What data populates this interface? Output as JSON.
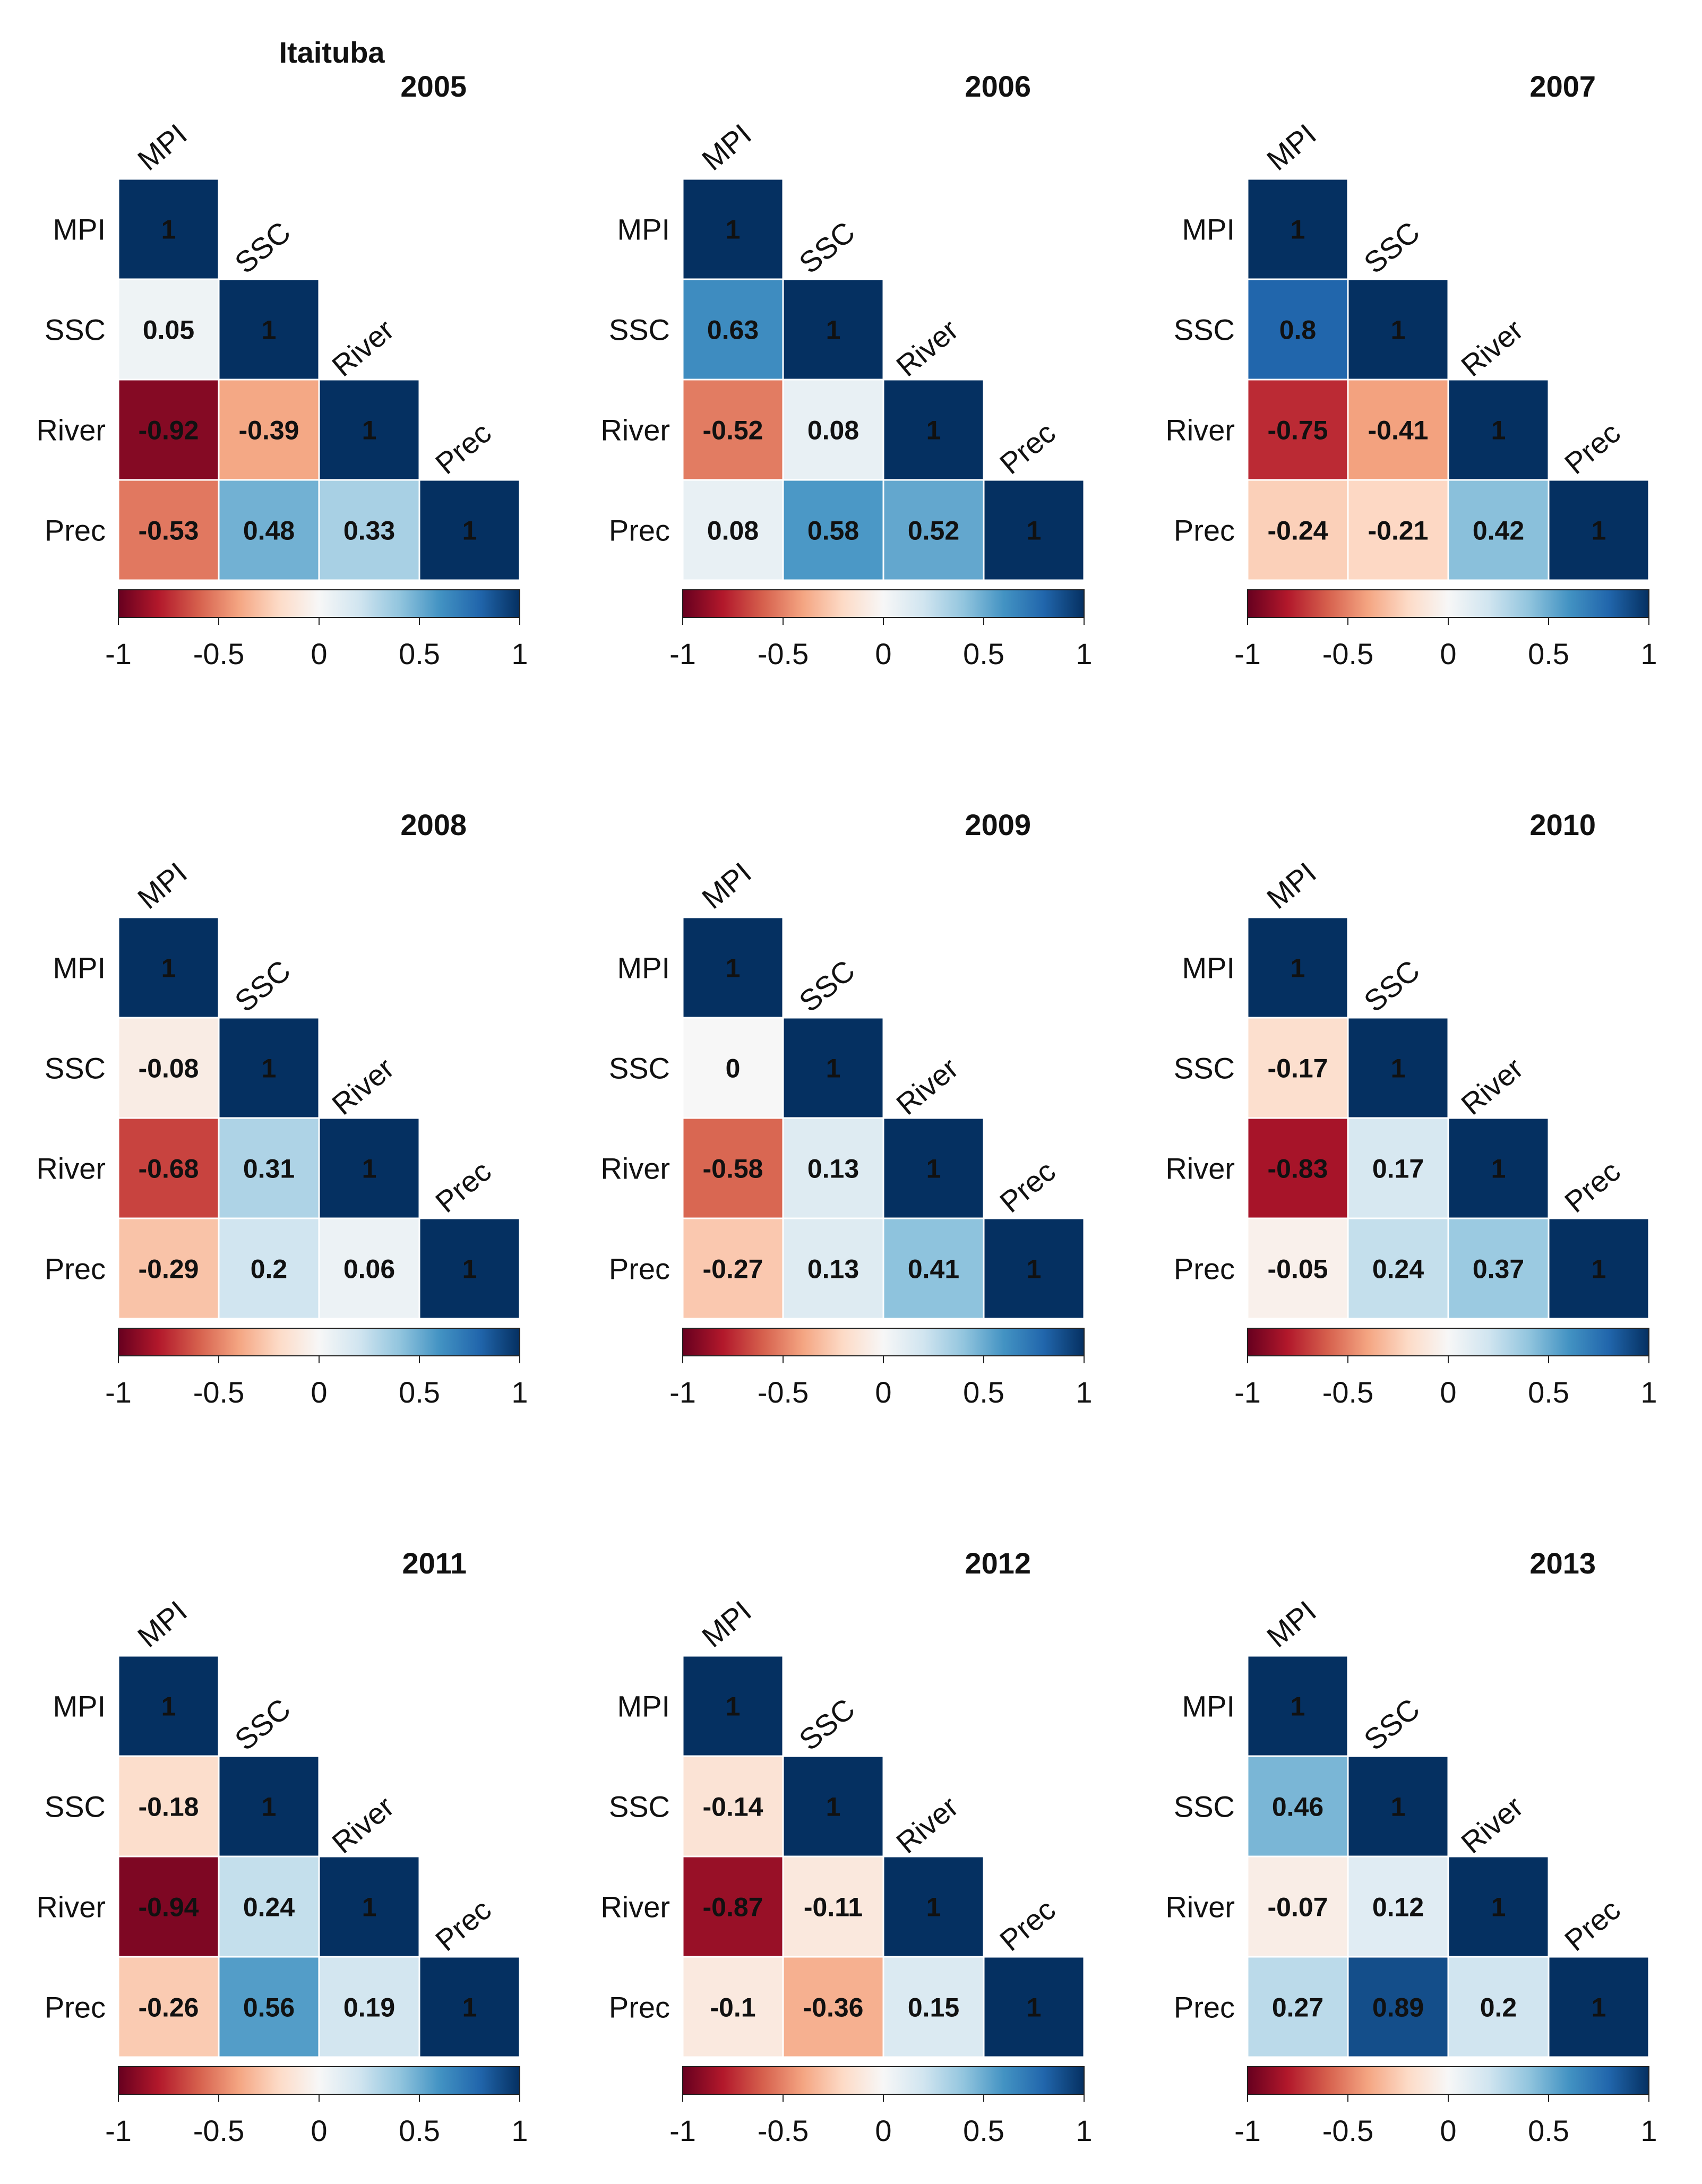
{
  "chart_data": {
    "type": "heatmap",
    "title": "Itaituba",
    "variables": [
      "MPI",
      "SSC",
      "River",
      "Prec"
    ],
    "colorbar": {
      "range": [
        -1,
        1
      ],
      "ticks": [
        -1,
        -0.5,
        0,
        0.5,
        1
      ],
      "tick_labels": [
        "-1",
        "-0.5",
        "0",
        "0.5",
        "1"
      ],
      "colors": [
        "#67001f",
        "#b2182b",
        "#d6604d",
        "#f4a582",
        "#fddbc7",
        "#f7f7f7",
        "#d1e5f0",
        "#92c5de",
        "#4393c3",
        "#2166ac",
        "#053061"
      ]
    },
    "panels": [
      {
        "year": "2005",
        "lower": [
          [
            "1"
          ],
          [
            "0.05",
            "1"
          ],
          [
            "-0.92",
            "-0.39",
            "1"
          ],
          [
            "-0.53",
            "0.48",
            "0.33",
            "1"
          ]
        ]
      },
      {
        "year": "2006",
        "lower": [
          [
            "1"
          ],
          [
            "0.63",
            "1"
          ],
          [
            "-0.52",
            "0.08",
            "1"
          ],
          [
            "0.08",
            "0.58",
            "0.52",
            "1"
          ]
        ]
      },
      {
        "year": "2007",
        "lower": [
          [
            "1"
          ],
          [
            "0.8",
            "1"
          ],
          [
            "-0.75",
            "-0.41",
            "1"
          ],
          [
            "-0.24",
            "-0.21",
            "0.42",
            "1"
          ]
        ]
      },
      {
        "year": "2008",
        "lower": [
          [
            "1"
          ],
          [
            "-0.08",
            "1"
          ],
          [
            "-0.68",
            "0.31",
            "1"
          ],
          [
            "-0.29",
            "0.2",
            "0.06",
            "1"
          ]
        ]
      },
      {
        "year": "2009",
        "lower": [
          [
            "1"
          ],
          [
            "0",
            "1"
          ],
          [
            "-0.58",
            "0.13",
            "1"
          ],
          [
            "-0.27",
            "0.13",
            "0.41",
            "1"
          ]
        ]
      },
      {
        "year": "2010",
        "lower": [
          [
            "1"
          ],
          [
            "-0.17",
            "1"
          ],
          [
            "-0.83",
            "0.17",
            "1"
          ],
          [
            "-0.05",
            "0.24",
            "0.37",
            "1"
          ]
        ]
      },
      {
        "year": "2011",
        "lower": [
          [
            "1"
          ],
          [
            "-0.18",
            "1"
          ],
          [
            "-0.94",
            "0.24",
            "1"
          ],
          [
            "-0.26",
            "0.56",
            "0.19",
            "1"
          ]
        ]
      },
      {
        "year": "2012",
        "lower": [
          [
            "1"
          ],
          [
            "-0.14",
            "1"
          ],
          [
            "-0.87",
            "-0.11",
            "1"
          ],
          [
            "-0.1",
            "-0.36",
            "0.15",
            "1"
          ]
        ]
      },
      {
        "year": "2013",
        "lower": [
          [
            "1"
          ],
          [
            "0.46",
            "1"
          ],
          [
            "-0.07",
            "0.12",
            "1"
          ],
          [
            "0.27",
            "0.89",
            "0.2",
            "1"
          ]
        ]
      }
    ]
  }
}
